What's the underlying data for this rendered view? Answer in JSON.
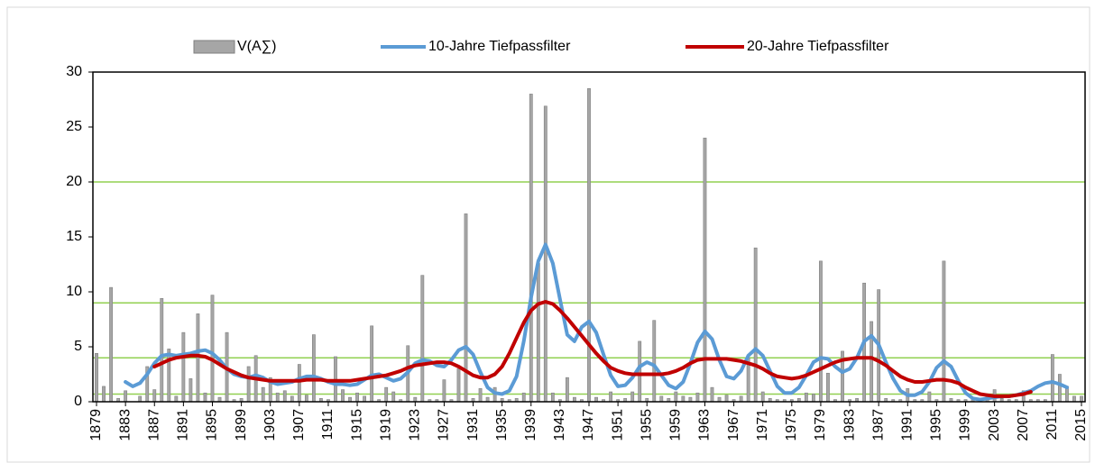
{
  "chart_data": {
    "type": "combo",
    "categories": [
      "1879",
      null,
      null,
      null,
      "1883",
      null,
      null,
      null,
      "1887",
      null,
      null,
      null,
      "1891",
      null,
      null,
      null,
      "1895",
      null,
      null,
      null,
      "1899",
      null,
      null,
      null,
      "1903",
      null,
      null,
      null,
      "1907",
      null,
      null,
      null,
      "1911",
      null,
      null,
      null,
      "1915",
      null,
      null,
      null,
      "1919",
      null,
      null,
      null,
      "1923",
      null,
      null,
      null,
      "1927",
      null,
      null,
      null,
      "1931",
      null,
      null,
      null,
      "1935",
      null,
      null,
      null,
      "1939",
      null,
      null,
      null,
      "1943",
      null,
      null,
      null,
      "1947",
      null,
      null,
      null,
      "1951",
      null,
      null,
      null,
      "1955",
      null,
      null,
      null,
      "1959",
      null,
      null,
      null,
      "1963",
      null,
      null,
      null,
      "1967",
      null,
      null,
      null,
      "1971",
      null,
      null,
      null,
      "1975",
      null,
      null,
      null,
      "1979",
      null,
      null,
      null,
      "1983",
      null,
      null,
      null,
      "1987",
      null,
      null,
      null,
      "1991",
      null,
      null,
      null,
      "1995",
      null,
      null,
      null,
      "1999",
      null,
      null,
      null,
      "2003",
      null,
      null,
      null,
      "2007",
      null,
      null,
      null,
      "2011",
      null,
      null,
      null,
      "2015"
    ],
    "series": [
      {
        "name": "V(A∑)",
        "type": "bar",
        "color": "#a6a6a6",
        "values": [
          4.4,
          1.4,
          10.4,
          0.3,
          1.0,
          0,
          0.5,
          3.2,
          1.1,
          9.4,
          4.8,
          0.5,
          6.3,
          2.1,
          8.0,
          0.8,
          9.7,
          0.4,
          6.3,
          0.2,
          0.3,
          3.2,
          4.2,
          1.3,
          2.2,
          0.8,
          1.0,
          0.5,
          3.4,
          0.6,
          6.1,
          0.3,
          0.2,
          4.1,
          1.1,
          0.4,
          0.8,
          0.5,
          6.9,
          0.2,
          1.3,
          0.9,
          0.2,
          5.1,
          0.4,
          11.5,
          0.2,
          0.2,
          2.0,
          0.2,
          3.0,
          17.1,
          0.3,
          1.2,
          0.4,
          1.3,
          0.3,
          0.2,
          0.3,
          0.8,
          28.0,
          12.6,
          26.9,
          0.8,
          0.2,
          2.2,
          0.4,
          0.2,
          28.5,
          0.4,
          0.2,
          0.9,
          0.2,
          0.3,
          0.9,
          5.5,
          0.3,
          7.4,
          0.5,
          0.3,
          0.9,
          0.5,
          0.4,
          0.8,
          24.0,
          1.3,
          0.4,
          0.6,
          0.2,
          0.5,
          4.0,
          14.0,
          0.9,
          0.3,
          0.2,
          0.2,
          0.2,
          0.3,
          0.8,
          0.7,
          12.8,
          2.6,
          0.2,
          4.6,
          0.2,
          0.3,
          10.8,
          7.3,
          10.2,
          0.3,
          0.2,
          0.2,
          1.2,
          0.2,
          0.2,
          0.9,
          0.2,
          12.8,
          0.3,
          0.2,
          0.2,
          0.2,
          0.2,
          0.5,
          1.1,
          0.3,
          0.2,
          0.2,
          1.0,
          0.2,
          0.2,
          0.2,
          4.3,
          2.5,
          1.4,
          0.5,
          0.5
        ]
      },
      {
        "name": "10-Jahre Tiefpassfilter",
        "type": "line",
        "color": "#5b9bd5",
        "values": [
          null,
          null,
          null,
          null,
          1.8,
          1.4,
          1.7,
          2.5,
          3.5,
          4.2,
          4.3,
          4.2,
          4.3,
          4.4,
          4.6,
          4.7,
          4.4,
          3.8,
          3.0,
          2.5,
          2.3,
          2.2,
          2.4,
          2.2,
          1.8,
          1.6,
          1.7,
          1.8,
          2.1,
          2.3,
          2.3,
          2.1,
          1.8,
          1.6,
          1.6,
          1.5,
          1.6,
          2.0,
          2.4,
          2.5,
          2.2,
          1.9,
          2.1,
          2.7,
          3.5,
          3.8,
          3.7,
          3.3,
          3.2,
          3.8,
          4.7,
          5.0,
          4.3,
          2.7,
          1.3,
          0.8,
          0.7,
          1.0,
          2.3,
          5.5,
          9.5,
          12.8,
          14.3,
          12.6,
          9.3,
          6.1,
          5.5,
          6.8,
          7.3,
          6.3,
          4.3,
          2.4,
          1.4,
          1.5,
          2.2,
          3.2,
          3.6,
          3.3,
          2.4,
          1.5,
          1.2,
          1.8,
          3.5,
          5.4,
          6.4,
          5.7,
          3.8,
          2.3,
          2.1,
          2.8,
          4.2,
          4.8,
          4.2,
          2.8,
          1.4,
          0.8,
          0.8,
          1.3,
          2.4,
          3.6,
          4.0,
          3.9,
          3.2,
          2.7,
          3.0,
          4.0,
          5.5,
          6.0,
          5.2,
          3.6,
          2.1,
          1.0,
          0.6,
          0.6,
          0.9,
          1.8,
          3.1,
          3.7,
          3.2,
          1.9,
          0.8,
          0.3,
          0.2,
          0.3,
          0.4,
          0.5,
          0.5,
          0.6,
          0.8,
          1.0,
          1.4,
          1.7,
          1.8,
          1.6,
          1.3,
          null,
          null
        ]
      },
      {
        "name": "20-Jahre Tiefpassfilter",
        "type": "line",
        "color": "#c00000",
        "values": [
          null,
          null,
          null,
          null,
          null,
          null,
          null,
          null,
          3.2,
          3.5,
          3.8,
          4.0,
          4.1,
          4.2,
          4.2,
          4.1,
          3.8,
          3.4,
          3.0,
          2.7,
          2.4,
          2.2,
          2.1,
          2.0,
          1.9,
          1.9,
          1.9,
          1.9,
          1.9,
          2.0,
          2.0,
          2.0,
          1.9,
          1.9,
          1.9,
          1.9,
          2.0,
          2.1,
          2.2,
          2.3,
          2.4,
          2.6,
          2.8,
          3.1,
          3.3,
          3.4,
          3.5,
          3.6,
          3.6,
          3.5,
          3.2,
          2.8,
          2.4,
          2.2,
          2.2,
          2.5,
          3.2,
          4.4,
          5.8,
          7.2,
          8.3,
          8.9,
          9.1,
          8.9,
          8.3,
          7.6,
          6.8,
          6.0,
          5.2,
          4.4,
          3.7,
          3.1,
          2.8,
          2.6,
          2.5,
          2.5,
          2.5,
          2.5,
          2.5,
          2.6,
          2.8,
          3.1,
          3.5,
          3.8,
          3.9,
          3.9,
          3.9,
          3.9,
          3.8,
          3.7,
          3.5,
          3.3,
          3.0,
          2.6,
          2.3,
          2.2,
          2.1,
          2.2,
          2.4,
          2.7,
          3.0,
          3.3,
          3.6,
          3.8,
          3.9,
          4.0,
          4.0,
          4.0,
          3.7,
          3.3,
          2.8,
          2.3,
          2.0,
          1.8,
          1.8,
          1.9,
          2.0,
          2.0,
          1.9,
          1.7,
          1.3,
          1.0,
          0.7,
          0.6,
          0.5,
          0.5,
          0.5,
          0.6,
          0.7,
          0.9,
          null,
          null,
          null,
          null,
          null,
          null,
          null
        ]
      }
    ],
    "ylim": [
      0,
      30
    ],
    "yticks": [
      0,
      5,
      10,
      15,
      20,
      25,
      30
    ],
    "reference_lines": [
      20,
      9,
      4,
      0.7
    ],
    "reference_color": "#92d050",
    "legend": "top"
  }
}
